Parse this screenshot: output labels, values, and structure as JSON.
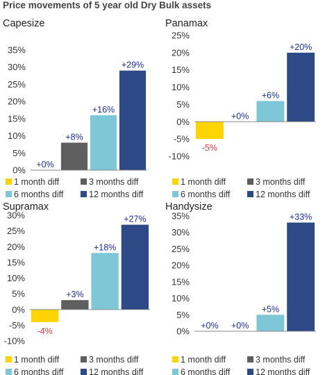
{
  "title": "Price movements of 5 year old Dry Bulk assets",
  "colors": {
    "1 month diff": "#FFD400",
    "3 months diff": "#5F5F5F",
    "6 months diff": "#7EC7D6",
    "12 months diff": "#2D4A86",
    "positive_label": "#1F2CA7",
    "negative_label": "#E23B3B"
  },
  "chart_data": [
    {
      "type": "bar",
      "title": "Capesize",
      "categories": [
        "1 month diff",
        "3 months diff",
        "6 months diff",
        "12 months diff"
      ],
      "values": [
        0,
        8,
        16,
        29
      ],
      "data_labels": [
        "+0%",
        "+8%",
        "+16%",
        "+29%"
      ],
      "ylim": [
        0,
        35
      ],
      "yticks": [
        0,
        5,
        10,
        15,
        20,
        25,
        30,
        35
      ],
      "ytick_labels": [
        "0%",
        "5%",
        "10%",
        "15%",
        "20%",
        "25%",
        "30%",
        "35%"
      ],
      "legend": [
        "1 month diff",
        "3 months diff",
        "6 months diff",
        "12 months diff"
      ],
      "legend_position": "bottom"
    },
    {
      "type": "bar",
      "title": "Panamax",
      "categories": [
        "1 month diff",
        "3 months diff",
        "6 months diff",
        "12 months diff"
      ],
      "values": [
        -5,
        0,
        6,
        20
      ],
      "data_labels": [
        "-5%",
        "+0%",
        "+6%",
        "+20%"
      ],
      "ylim": [
        -10,
        25
      ],
      "yticks": [
        -10,
        -5,
        0,
        5,
        10,
        15,
        20,
        25
      ],
      "ytick_labels": [
        "-10%",
        "-5%",
        "0%",
        "5%",
        "10%",
        "15%",
        "20%",
        "25%"
      ],
      "legend": [
        "1 month diff",
        "3 months diff",
        "6 months diff",
        "12 months diff"
      ],
      "legend_position": "bottom"
    },
    {
      "type": "bar",
      "title": "Supramax",
      "categories": [
        "1 month diff",
        "3 months diff",
        "6 months diff",
        "12 months diff"
      ],
      "values": [
        -4,
        3,
        18,
        27
      ],
      "data_labels": [
        "-4%",
        "+3%",
        "+18%",
        "+27%"
      ],
      "ylim": [
        -10,
        30
      ],
      "yticks": [
        -10,
        -5,
        0,
        5,
        10,
        15,
        20,
        25,
        30
      ],
      "ytick_labels": [
        "-10%",
        "-5%",
        "0%",
        "5%",
        "10%",
        "15%",
        "20%",
        "25%",
        "30%"
      ],
      "legend": [
        "1 month diff",
        "3 months diff",
        "6 months diff",
        "12 months diff"
      ],
      "legend_position": "bottom"
    },
    {
      "type": "bar",
      "title": "Handysize",
      "categories": [
        "1 month diff",
        "3 months diff",
        "6 months diff",
        "12 months diff"
      ],
      "values": [
        0,
        0,
        5,
        33
      ],
      "data_labels": [
        "+0%",
        "+0%",
        "+5%",
        "+33%"
      ],
      "ylim": [
        0,
        35
      ],
      "yticks": [
        0,
        5,
        10,
        15,
        20,
        25,
        30,
        35
      ],
      "ytick_labels": [
        "0%",
        "5%",
        "10%",
        "15%",
        "20%",
        "25%",
        "30%",
        "35%"
      ],
      "legend": [
        "1 month diff",
        "3 months diff",
        "6 months diff",
        "12 months diff"
      ],
      "legend_position": "bottom"
    }
  ]
}
